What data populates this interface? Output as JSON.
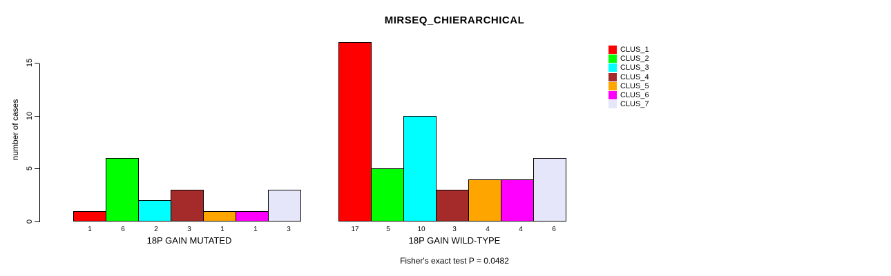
{
  "chart_data": {
    "type": "bar",
    "title": "MIRSEQ_CHIERARCHICAL",
    "ylabel": "number of cases",
    "ylim": [
      0,
      17
    ],
    "yticks": [
      0,
      5,
      10,
      15
    ],
    "grid": false,
    "legend_position": "right",
    "clusters": [
      {
        "name": "CLUS_1",
        "color": "#FF0000"
      },
      {
        "name": "CLUS_2",
        "color": "#00FF00"
      },
      {
        "name": "CLUS_3",
        "color": "#00FFFF"
      },
      {
        "name": "CLUS_4",
        "color": "#A52A2A"
      },
      {
        "name": "CLUS_5",
        "color": "#FFA500"
      },
      {
        "name": "CLUS_6",
        "color": "#FF00FF"
      },
      {
        "name": "CLUS_7",
        "color": "#E6E6FA"
      }
    ],
    "groups": [
      {
        "label": "18P GAIN MUTATED",
        "values": [
          1,
          6,
          2,
          3,
          1,
          1,
          3
        ]
      },
      {
        "label": "18P GAIN WILD-TYPE",
        "values": [
          17,
          5,
          10,
          3,
          4,
          4,
          6
        ]
      }
    ],
    "annotation": "Fisher's exact test P = 0.0482"
  }
}
